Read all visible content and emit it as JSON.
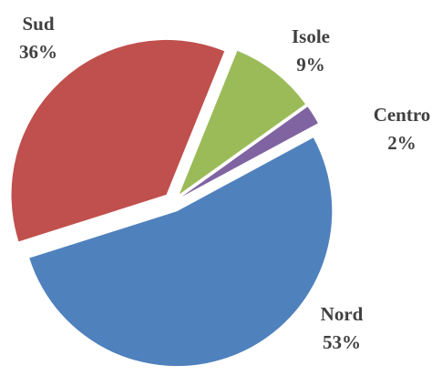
{
  "chart_data": {
    "type": "pie",
    "categories": [
      "Isole",
      "Centro",
      "Nord",
      "Sud"
    ],
    "values": [
      9,
      2,
      53,
      36
    ],
    "value_labels": [
      "9%",
      "2%",
      "53%",
      "36%"
    ],
    "colors": [
      "#9bbb59",
      "#8064a2",
      "#4f81bd",
      "#c0504d"
    ]
  }
}
